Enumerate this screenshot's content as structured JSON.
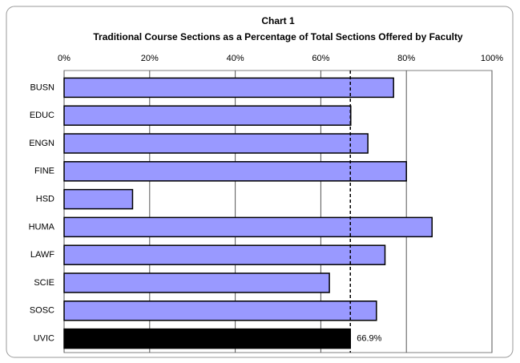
{
  "chart_data": {
    "type": "bar",
    "orientation": "horizontal",
    "title": "Chart 1",
    "subtitle": "Traditional Course Sections as a Percentage of Total Sections Offered by Faculty",
    "categories": [
      "BUSN",
      "EDUC",
      "ENGN",
      "FINE",
      "HSD",
      "HUMA",
      "LAWF",
      "SCIE",
      "SOSC",
      "UVIC"
    ],
    "values": [
      77,
      67,
      71,
      80,
      16,
      86,
      75,
      62,
      73,
      66.9
    ],
    "value_labels": [
      null,
      null,
      null,
      null,
      null,
      null,
      null,
      null,
      null,
      "66.9%"
    ],
    "colors": [
      "#9999ff",
      "#9999ff",
      "#9999ff",
      "#9999ff",
      "#9999ff",
      "#9999ff",
      "#9999ff",
      "#9999ff",
      "#9999ff",
      "#000000"
    ],
    "xlim": [
      0,
      100
    ],
    "xticks": [
      {
        "value": 0,
        "label": "0%"
      },
      {
        "value": 20,
        "label": "20%"
      },
      {
        "value": 40,
        "label": "40%"
      },
      {
        "value": 60,
        "label": "60%"
      },
      {
        "value": 80,
        "label": "80%"
      },
      {
        "value": 100,
        "label": "100%"
      }
    ],
    "grid": true
  }
}
